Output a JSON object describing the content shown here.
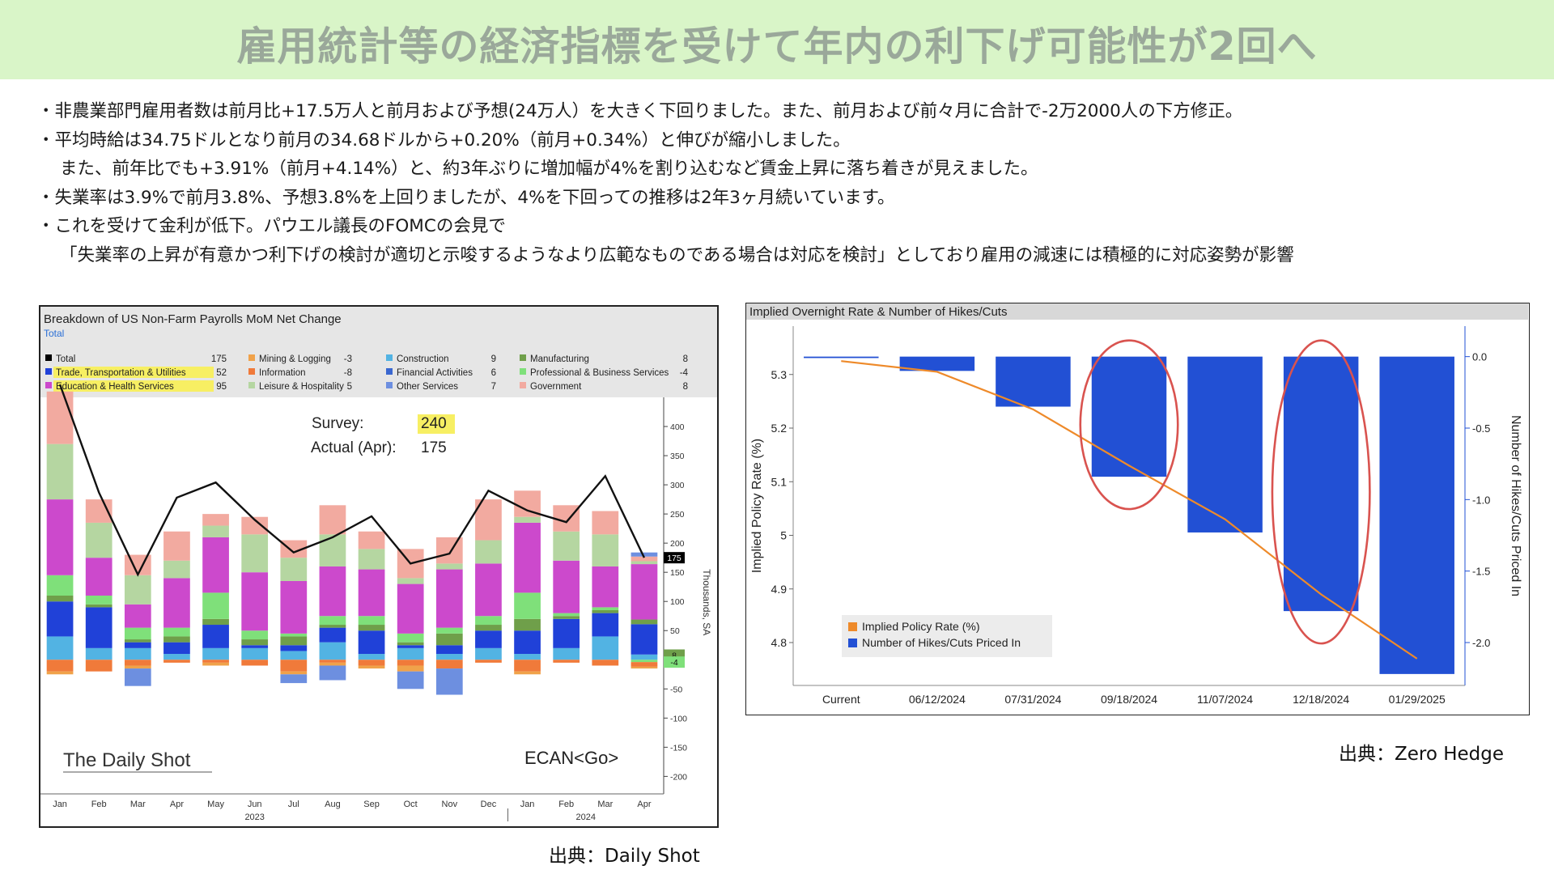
{
  "title": "雇用統計等の経済指標を受けて年内の利下げ可能性が2回へ",
  "bullets": [
    "・非農業部門雇用者数は前月比+17.5万人と前月および予想(24万人）を大きく下回りました。また、前月および前々月に合計で-2万2000人の下方修正。",
    "・平均時給は34.75ドルとなり前月の34.68ドルから+0.20%（前月+0.34%）と伸びが縮小しました。",
    "また、前年比でも+3.91%（前月+4.14%）と、約3年ぶりに増加幅が4%を割り込むなど賃金上昇に落ち着きが見えました。",
    "・失業率は3.9%で前月3.8%、予想3.8%を上回りましたが、4%を下回っての推移は2年3ヶ月続いています。",
    "・これを受けて金利が低下。パウエル議長のFOMCの会見で",
    "「失業率の上昇が有意かつ利下げの検討が適切と示唆するようなより広範なものである場合は対応を検討」としており雇用の減速には積極的に対応姿勢が影響"
  ],
  "sources": {
    "left": "出典：Daily Shot",
    "right": "出典：Zero Hedge"
  },
  "chart_data": [
    {
      "type": "bar",
      "stacked": true,
      "title": "Breakdown of US Non-Farm Payrolls MoM Net Change",
      "subtitle": "Total",
      "ylabel": "Thousands, SA",
      "ylim": [
        -230,
        450
      ],
      "yticks": [
        400,
        350,
        300,
        250,
        200,
        150,
        100,
        50,
        0,
        -50,
        -100,
        -150,
        -200
      ],
      "categories": [
        "Jan",
        "Feb",
        "Mar",
        "Apr",
        "May",
        "Jun",
        "Jul",
        "Aug",
        "Sep",
        "Oct",
        "Nov",
        "Dec",
        "Jan",
        "Feb",
        "Mar",
        "Apr"
      ],
      "year_labels": [
        "2023",
        "2024"
      ],
      "annotation": {
        "survey_label": "Survey:",
        "survey_value": "240",
        "actual_label": "Actual (Apr):",
        "actual_value": "175"
      },
      "watermark": "The Daily Shot",
      "ticker": "ECAN<Go>",
      "highlight_color": "#f7ef63",
      "legend": [
        {
          "name": "Total",
          "value": "175",
          "color": "#000000"
        },
        {
          "name": "Trade, Transportation & Utilities",
          "value": "52",
          "color": "#2041d8",
          "highlight": true
        },
        {
          "name": "Education & Health Services",
          "value": "95",
          "color": "#cc49cc",
          "highlight": true
        },
        {
          "name": "Mining & Logging",
          "value": "-3",
          "color": "#f0a24a"
        },
        {
          "name": "Information",
          "value": "-8",
          "color": "#f07a3a"
        },
        {
          "name": "Leisure & Hospitality",
          "value": "5",
          "color": "#b5d6a1"
        },
        {
          "name": "Construction",
          "value": "9",
          "color": "#52b3e3"
        },
        {
          "name": "Financial Activities",
          "value": "6",
          "color": "#3a67d0"
        },
        {
          "name": "Other Services",
          "value": "7",
          "color": "#6d8fe0"
        },
        {
          "name": "Manufacturing",
          "value": "8",
          "color": "#6f9f4a"
        },
        {
          "name": "Professional & Business Services",
          "value": "-4",
          "color": "#7fe07a"
        },
        {
          "name": "Government",
          "value": "8",
          "color": "#f2aaa0"
        }
      ],
      "series": [
        {
          "name": "Construction",
          "color": "#52b3e3",
          "values": [
            40,
            20,
            20,
            10,
            20,
            20,
            15,
            30,
            10,
            20,
            10,
            20,
            10,
            20,
            40,
            9
          ]
        },
        {
          "name": "Trade, Transportation & Utilities",
          "color": "#2041d8",
          "values": [
            60,
            70,
            10,
            20,
            40,
            5,
            10,
            25,
            40,
            5,
            15,
            30,
            40,
            50,
            40,
            52
          ]
        },
        {
          "name": "Manufacturing",
          "color": "#6f9f4a",
          "values": [
            10,
            5,
            5,
            10,
            10,
            10,
            15,
            5,
            10,
            5,
            20,
            10,
            20,
            5,
            5,
            8
          ]
        },
        {
          "name": "Professional & Business Services",
          "color": "#7fe07a",
          "values": [
            35,
            15,
            20,
            15,
            45,
            15,
            5,
            15,
            15,
            15,
            10,
            15,
            45,
            5,
            5,
            -4
          ]
        },
        {
          "name": "Education & Health Services",
          "color": "#cc49cc",
          "values": [
            130,
            65,
            40,
            85,
            95,
            100,
            90,
            85,
            80,
            85,
            100,
            90,
            120,
            90,
            70,
            95
          ]
        },
        {
          "name": "Leisure & Hospitality",
          "color": "#b5d6a1",
          "values": [
            95,
            60,
            50,
            30,
            20,
            65,
            40,
            55,
            35,
            10,
            10,
            40,
            10,
            50,
            55,
            5
          ]
        },
        {
          "name": "Government",
          "color": "#f2aaa0",
          "values": [
            90,
            40,
            35,
            50,
            20,
            30,
            30,
            50,
            30,
            50,
            45,
            70,
            45,
            45,
            40,
            8
          ]
        },
        {
          "name": "Information",
          "color": "#f07a3a",
          "values": [
            -20,
            -20,
            -10,
            -5,
            -5,
            -10,
            -20,
            -5,
            -10,
            -10,
            -15,
            -5,
            -20,
            -5,
            -10,
            -8
          ]
        },
        {
          "name": "Mining & Logging",
          "color": "#f0a24a",
          "values": [
            -5,
            0,
            -5,
            0,
            -5,
            0,
            -5,
            -5,
            -5,
            -10,
            0,
            0,
            -5,
            0,
            0,
            -3
          ]
        },
        {
          "name": "Other Services",
          "color": "#6d8fe0",
          "values": [
            0,
            0,
            -30,
            0,
            0,
            0,
            -15,
            -25,
            0,
            -30,
            -45,
            0,
            0,
            0,
            0,
            7
          ]
        }
      ],
      "total": [
        472,
        287,
        146,
        278,
        304,
        240,
        184,
        210,
        246,
        165,
        182,
        290,
        256,
        236,
        315,
        175
      ],
      "right_badges": [
        {
          "value": "175",
          "y": 175,
          "color": "#000000"
        },
        {
          "value": "8",
          "y": 8,
          "color": "#6f9f4a"
        },
        {
          "value": "-4",
          "y": -4,
          "color": "#7fe07a"
        }
      ]
    },
    {
      "type": "bar",
      "title": "Implied Overnight Rate & Number of Hikes/Cuts",
      "categories": [
        "Current",
        "06/12/2024",
        "07/31/2024",
        "09/18/2024",
        "11/07/2024",
        "12/18/2024",
        "01/29/2025"
      ],
      "ylabel": "Implied Policy Rate (%)",
      "ylabel_right": "Number of Hikes/Cuts Priced In",
      "ylim": [
        4.72,
        5.36
      ],
      "yticks": [
        5.3,
        5.2,
        5.1,
        5.0,
        4.9,
        4.8
      ],
      "ylim_right": [
        -2.3,
        0.1
      ],
      "yticks_right": [
        0.0,
        -0.5,
        -1.0,
        -1.5,
        -2.0
      ],
      "yticks_right_labels": [
        "0.0",
        "-0.5",
        "-1.0",
        "-1.5",
        "-2.0"
      ],
      "series": [
        {
          "name": "Implied Policy Rate (%)",
          "type": "line",
          "color": "#ee8a2a",
          "values": [
            5.325,
            5.305,
            5.235,
            5.13,
            5.03,
            4.89,
            4.77
          ]
        },
        {
          "name": "Number of Hikes/Cuts Priced In",
          "type": "bar",
          "color": "#2250d4",
          "values": [
            -0.01,
            -0.1,
            -0.35,
            -0.84,
            -1.23,
            -1.78,
            -2.22
          ]
        }
      ],
      "highlighted_categories": [
        "09/18/2024",
        "12/18/2024"
      ],
      "highlight_color": "#d9534f"
    }
  ]
}
